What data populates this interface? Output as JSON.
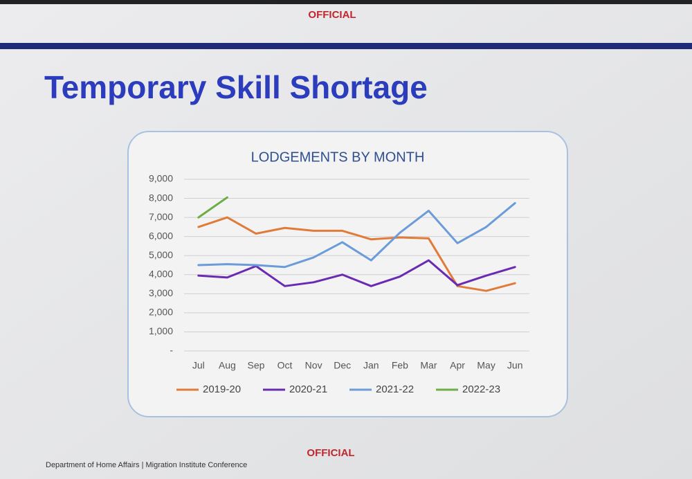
{
  "header": {
    "classification": "OFFICIAL",
    "title": "Temporary Skill Shortage"
  },
  "footer": {
    "classification": "OFFICIAL",
    "source": "Department of Home Affairs | Migration Institute Conference"
  },
  "chart_data": {
    "type": "line",
    "title": "LODGEMENTS BY MONTH",
    "categories": [
      "Jul",
      "Aug",
      "Sep",
      "Oct",
      "Nov",
      "Dec",
      "Jan",
      "Feb",
      "Mar",
      "Apr",
      "May",
      "Jun"
    ],
    "series": [
      {
        "name": "2019-20",
        "color": "#e07b39",
        "values": [
          6500,
          7000,
          6150,
          6450,
          6300,
          6300,
          5850,
          5950,
          5900,
          3400,
          3150,
          3550
        ]
      },
      {
        "name": "2020-21",
        "color": "#6a2bb0",
        "values": [
          3950,
          3850,
          4450,
          3400,
          3600,
          4000,
          3400,
          3900,
          4750,
          3450,
          3950,
          4400
        ]
      },
      {
        "name": "2021-22",
        "color": "#6b9bd8",
        "values": [
          4500,
          4550,
          4500,
          4400,
          4900,
          5700,
          4750,
          6200,
          7350,
          5650,
          6500,
          7750
        ]
      },
      {
        "name": "2022-23",
        "color": "#6cae45",
        "values": [
          7000,
          8050,
          null,
          null,
          null,
          null,
          null,
          null,
          null,
          null,
          null,
          null
        ]
      }
    ],
    "ylim": [
      0,
      9000
    ],
    "yticks": [
      {
        "value": 0,
        "label": "-"
      },
      {
        "value": 1000,
        "label": "1,000"
      },
      {
        "value": 2000,
        "label": "2,000"
      },
      {
        "value": 3000,
        "label": "3,000"
      },
      {
        "value": 4000,
        "label": "4,000"
      },
      {
        "value": 5000,
        "label": "5,000"
      },
      {
        "value": 6000,
        "label": "6,000"
      },
      {
        "value": 7000,
        "label": "7,000"
      },
      {
        "value": 8000,
        "label": "8,000"
      },
      {
        "value": 9000,
        "label": "9,000"
      }
    ],
    "grid": true,
    "legend": "bottom"
  }
}
